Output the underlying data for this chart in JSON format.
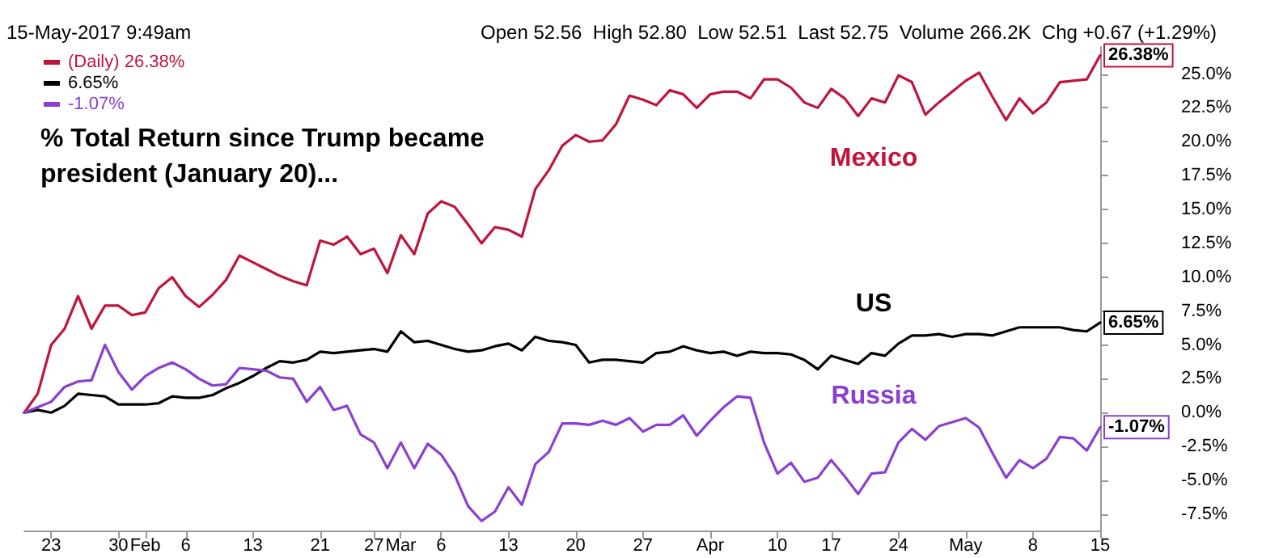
{
  "chart_data": {
    "type": "line",
    "title": "% Total Return since Trump became president (January 20)...",
    "annotations": [
      "15-May-2017 9:49am",
      "Open 52.56  High 52.80  Low 52.51  Last 52.75  Volume 266.2K  Chg +0.67 (+1.29%)",
      "Mexico",
      "US",
      "Russia"
    ],
    "categories": [
      null,
      null,
      "23",
      null,
      null,
      null,
      null,
      "30",
      null,
      "Feb",
      null,
      null,
      "6",
      null,
      null,
      null,
      null,
      "13",
      null,
      null,
      null,
      null,
      "21",
      null,
      null,
      null,
      "27",
      null,
      "Mar",
      null,
      null,
      "6",
      null,
      null,
      null,
      null,
      "13",
      null,
      null,
      null,
      null,
      "20",
      null,
      null,
      null,
      null,
      "27",
      null,
      null,
      null,
      null,
      "Apr",
      null,
      null,
      null,
      null,
      "10",
      null,
      null,
      null,
      "17",
      null,
      null,
      null,
      null,
      "24",
      null,
      null,
      null,
      null,
      "May",
      null,
      null,
      null,
      null,
      "8",
      null,
      null,
      null,
      null,
      "15"
    ],
    "series": [
      {
        "name": "(Daily) 26.38%",
        "color": "#c0143c",
        "values": [
          0,
          1.4,
          5.0,
          6.2,
          8.6,
          6.2,
          7.9,
          7.9,
          7.2,
          7.4,
          9.2,
          10.0,
          8.6,
          7.8,
          8.7,
          9.8,
          11.6,
          11.1,
          10.6,
          10.1,
          9.7,
          9.4,
          12.7,
          12.4,
          13.0,
          11.7,
          12.1,
          10.3,
          13.1,
          11.7,
          14.7,
          15.6,
          15.2,
          13.9,
          12.5,
          13.7,
          13.5,
          13.0,
          16.5,
          17.9,
          19.7,
          20.5,
          20.0,
          20.1,
          21.3,
          23.4,
          23.1,
          22.7,
          23.8,
          23.5,
          22.5,
          23.5,
          23.7,
          23.7,
          23.2,
          24.6,
          24.6,
          24.0,
          22.9,
          22.5,
          23.9,
          23.2,
          21.9,
          23.2,
          22.9,
          24.9,
          24.4,
          22.0,
          22.9,
          23.7,
          24.5,
          25.1,
          23.3,
          21.6,
          23.2,
          22.1,
          22.9,
          24.4,
          24.5,
          24.6,
          26.38
        ],
        "value_labels": [
          null,
          null,
          null,
          null,
          null,
          null,
          null,
          null,
          null,
          null,
          null,
          null,
          null,
          null,
          null,
          null,
          null,
          null,
          null,
          null,
          null,
          null,
          null,
          null,
          null,
          null,
          null,
          null,
          null,
          null,
          null,
          null,
          null,
          null,
          null,
          null,
          null,
          null,
          null,
          null,
          null,
          null,
          null,
          null,
          null,
          null,
          null,
          null,
          null,
          null,
          null,
          null,
          null,
          null,
          null,
          null,
          null,
          null,
          null,
          null,
          null,
          null,
          null,
          null,
          null,
          null,
          null,
          null,
          null,
          null,
          null,
          null,
          null,
          null,
          null,
          null,
          null,
          null,
          null,
          null,
          "26.38%"
        ]
      },
      {
        "name": "6.65%",
        "color": "#000000",
        "values": [
          0,
          0.2,
          0,
          0.5,
          1.4,
          1.3,
          1.2,
          0.6,
          0.6,
          0.6,
          0.7,
          1.2,
          1.1,
          1.1,
          1.3,
          1.8,
          2.2,
          2.7,
          3.3,
          3.8,
          3.7,
          3.9,
          4.5,
          4.4,
          4.5,
          4.6,
          4.7,
          4.5,
          6.0,
          5.2,
          5.3,
          5.0,
          4.7,
          4.5,
          4.6,
          4.9,
          5.1,
          4.6,
          5.6,
          5.3,
          5.2,
          5.0,
          3.7,
          3.9,
          3.9,
          3.8,
          3.7,
          4.4,
          4.5,
          4.9,
          4.6,
          4.4,
          4.5,
          4.2,
          4.5,
          4.4,
          4.4,
          4.3,
          3.9,
          3.2,
          4.2,
          3.9,
          3.6,
          4.4,
          4.2,
          5.1,
          5.7,
          5.7,
          5.8,
          5.6,
          5.8,
          5.8,
          5.7,
          6.0,
          6.3,
          6.3,
          6.3,
          6.3,
          6.1,
          6.0,
          6.65
        ],
        "value_labels": [
          null,
          null,
          null,
          null,
          null,
          null,
          null,
          null,
          null,
          null,
          null,
          null,
          null,
          null,
          null,
          null,
          null,
          null,
          null,
          null,
          null,
          null,
          null,
          null,
          null,
          null,
          null,
          null,
          null,
          null,
          null,
          null,
          null,
          null,
          null,
          null,
          null,
          null,
          null,
          null,
          null,
          null,
          null,
          null,
          null,
          null,
          null,
          null,
          null,
          null,
          null,
          null,
          null,
          null,
          null,
          null,
          null,
          null,
          null,
          null,
          null,
          null,
          null,
          null,
          null,
          null,
          null,
          null,
          null,
          null,
          null,
          null,
          null,
          null,
          null,
          null,
          null,
          null,
          null,
          null,
          "6.65%"
        ]
      },
      {
        "name": "-1.07%",
        "color": "#8a3fd1",
        "values": [
          0,
          0.4,
          0.8,
          1.9,
          2.3,
          2.4,
          5.0,
          3.0,
          1.7,
          2.7,
          3.3,
          3.7,
          3.2,
          2.5,
          2.0,
          2.1,
          3.3,
          3.2,
          3.1,
          2.6,
          2.5,
          0.8,
          1.9,
          0.2,
          0.5,
          -1.6,
          -2.2,
          -4.1,
          -2.2,
          -4.1,
          -2.3,
          -3.1,
          -4.6,
          -6.9,
          -8.0,
          -7.3,
          -5.5,
          -6.8,
          -3.8,
          -2.9,
          -0.8,
          -0.8,
          -0.9,
          -0.6,
          -0.9,
          -0.4,
          -1.4,
          -0.9,
          -0.9,
          -0.2,
          -1.7,
          -0.6,
          0.4,
          1.2,
          1.1,
          -2.2,
          -4.5,
          -3.7,
          -5.1,
          -4.8,
          -3.5,
          -4.7,
          -6.0,
          -4.5,
          -4.4,
          -2.2,
          -1.2,
          -2.0,
          -1.0,
          -0.7,
          -0.4,
          -1.1,
          -3.0,
          -4.8,
          -3.5,
          -4.1,
          -3.4,
          -1.8,
          -1.9,
          -2.8,
          -1.07
        ],
        "value_labels": [
          null,
          null,
          null,
          null,
          null,
          null,
          null,
          null,
          null,
          null,
          null,
          null,
          null,
          null,
          null,
          null,
          null,
          null,
          null,
          null,
          null,
          null,
          null,
          null,
          null,
          null,
          null,
          null,
          null,
          null,
          null,
          null,
          null,
          null,
          null,
          null,
          null,
          null,
          null,
          null,
          null,
          null,
          null,
          null,
          null,
          null,
          null,
          null,
          null,
          null,
          null,
          null,
          null,
          null,
          null,
          null,
          null,
          null,
          null,
          null,
          null,
          null,
          null,
          null,
          null,
          null,
          null,
          null,
          null,
          null,
          null,
          null,
          null,
          null,
          null,
          null,
          null,
          null,
          null,
          null,
          "-1.07%"
        ]
      }
    ],
    "ylim": [
      -8.7,
      27
    ],
    "yticks": [
      {
        "value": -7.5,
        "label": "-7.5%"
      },
      {
        "value": -5,
        "label": "-5.0%"
      },
      {
        "value": -2.5,
        "label": "-2.5%"
      },
      {
        "value": 0,
        "label": "0.0%"
      },
      {
        "value": 2.5,
        "label": "2.5%"
      },
      {
        "value": 5,
        "label": "5.0%"
      },
      {
        "value": 7.5,
        "label": "7.5%"
      },
      {
        "value": 10,
        "label": "10.0%"
      },
      {
        "value": 12.5,
        "label": "12.5%"
      },
      {
        "value": 15,
        "label": "15.0%"
      },
      {
        "value": 17.5,
        "label": "17.5%"
      },
      {
        "value": 20,
        "label": "20.0%"
      },
      {
        "value": 22.5,
        "label": "22.5%"
      },
      {
        "value": 25,
        "label": "25.0%"
      }
    ],
    "legend": "top left",
    "marker": "none",
    "line_style": "solid",
    "grid": false
  }
}
